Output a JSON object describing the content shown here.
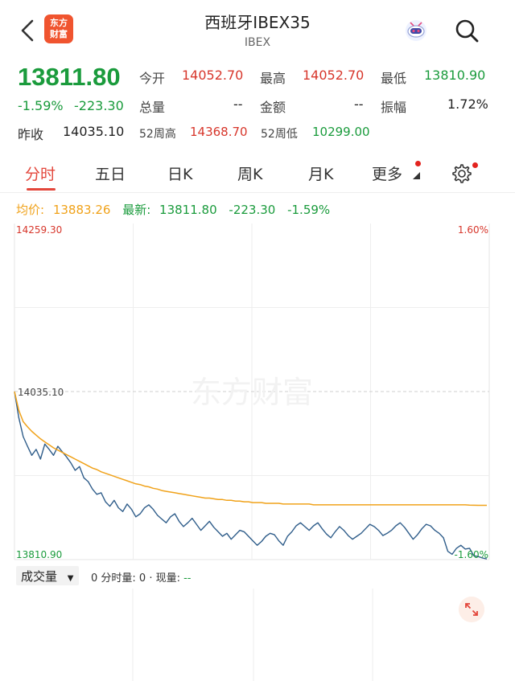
{
  "header": {
    "logo_line1": "东方",
    "logo_line2": "财富",
    "title": "西班牙IBEX35",
    "subtitle": "IBEX"
  },
  "quote": {
    "price": "13811.80",
    "change_pct": "-1.59%",
    "change_abs": "-223.30",
    "prev_close_label": "昨收",
    "prev_close": "14035.10",
    "open_label": "今开",
    "open": "14052.70",
    "high_label": "最高",
    "high": "14052.70",
    "low_label": "最低",
    "low": "13810.90",
    "volume_label": "总量",
    "volume": "--",
    "amount_label": "金额",
    "amount": "--",
    "amplitude_label": "振幅",
    "amplitude": "1.72%",
    "w52_high_label": "52周高",
    "w52_high": "14368.70",
    "w52_low_label": "52周低",
    "w52_low": "10299.00"
  },
  "tabs": [
    {
      "label": "分时",
      "active": true
    },
    {
      "label": "五日",
      "active": false
    },
    {
      "label": "日K",
      "active": false
    },
    {
      "label": "周K",
      "active": false
    },
    {
      "label": "月K",
      "active": false
    },
    {
      "label": "更多",
      "active": false
    }
  ],
  "legend": {
    "avg_label": "均价:",
    "avg_value": "13883.26",
    "latest_label": "最新:",
    "latest_value": "13811.80",
    "latest_abs": "-223.30",
    "latest_pct": "-1.59%"
  },
  "chart_data": {
    "type": "line",
    "y_top_label": "14259.30",
    "y_mid_label": "14035.10",
    "y_bottom_label": "13810.90",
    "right_top_label": "1.60%",
    "right_bottom_label": "-1.60%",
    "ylim": [
      13810.9,
      14259.3
    ],
    "reference": 14035.1,
    "watermark": "东方财富",
    "series": [
      {
        "color": "#2f5d8a",
        "values": [
          14035.1,
          14000,
          13975,
          13962,
          13950,
          13958,
          13945,
          13965,
          13958,
          13950,
          13962,
          13955,
          13948,
          13940,
          13930,
          13935,
          13920,
          13915,
          13905,
          13898,
          13900,
          13888,
          13882,
          13890,
          13880,
          13875,
          13885,
          13878,
          13868,
          13872,
          13880,
          13884,
          13878,
          13870,
          13865,
          13860,
          13868,
          13872,
          13862,
          13855,
          13860,
          13866,
          13858,
          13850,
          13856,
          13862,
          13854,
          13848,
          13842,
          13846,
          13838,
          13844,
          13850,
          13848,
          13842,
          13836,
          13830,
          13835,
          13842,
          13846,
          13844,
          13836,
          13830,
          13842,
          13848,
          13856,
          13860,
          13855,
          13850,
          13856,
          13860,
          13852,
          13845,
          13840,
          13848,
          13855,
          13850,
          13843,
          13838,
          13842,
          13846,
          13852,
          13858,
          13855,
          13850,
          13843,
          13846,
          13850,
          13856,
          13860,
          13854,
          13846,
          13838,
          13844,
          13852,
          13858,
          13856,
          13850,
          13846,
          13840,
          13822,
          13818,
          13826,
          13830,
          13825,
          13826,
          13816,
          13815,
          13813,
          13811.8
        ]
      },
      {
        "color": "#f0a21a",
        "values": [
          14035.1,
          14010,
          13995,
          13988,
          13982,
          13977,
          13972,
          13968,
          13964,
          13960,
          13957,
          13954,
          13951,
          13948,
          13945,
          13942,
          13939,
          13936,
          13933,
          13931,
          13928,
          13926,
          13924,
          13922,
          13920,
          13918,
          13916,
          13914,
          13912,
          13911,
          13909,
          13908,
          13906,
          13905,
          13903,
          13902,
          13901,
          13900,
          13899,
          13898,
          13897,
          13896,
          13895,
          13894,
          13893,
          13893,
          13892,
          13891,
          13891,
          13890,
          13890,
          13889,
          13889,
          13888,
          13888,
          13887,
          13887,
          13887,
          13886,
          13886,
          13886,
          13886,
          13885,
          13885,
          13885,
          13885,
          13885,
          13885,
          13885,
          13884,
          13884,
          13884,
          13884,
          13884,
          13884,
          13884,
          13884,
          13884,
          13884,
          13884,
          13884,
          13884,
          13884,
          13884,
          13884,
          13884,
          13884,
          13884,
          13884,
          13884,
          13884,
          13884,
          13884,
          13884,
          13884,
          13884,
          13884,
          13884,
          13884,
          13884,
          13884,
          13884,
          13884,
          13884,
          13884,
          13883.5,
          13883.4,
          13883.3,
          13883.3,
          13883.26
        ]
      }
    ]
  },
  "volume_bar": {
    "select_label": "成交量",
    "text_prefix": "0 分时量: 0 · 现量:",
    "text_dash": "--"
  },
  "colors": {
    "up": "#d7362b",
    "down": "#1a9b3c",
    "accent": "#e3463b",
    "avg_line": "#f0a21a"
  }
}
